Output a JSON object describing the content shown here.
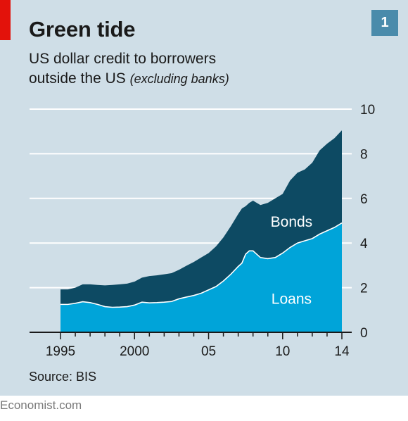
{
  "header": {
    "title": "Green tide",
    "subtitle_line1": "US dollar credit to borrowers",
    "subtitle_line2": "outside the US",
    "subtitle_note": "(excluding banks)",
    "badge": "1"
  },
  "source": "Source: BIS",
  "footer": "Economist.com",
  "colors": {
    "background": "#cfdee7",
    "bonds": "#0d4a63",
    "loans": "#00a4d9",
    "grid": "#ffffff",
    "accent_red": "#e3120b",
    "badge": "#4a8bab"
  },
  "chart_data": {
    "type": "area",
    "stacked": true,
    "title": "Green tide",
    "subtitle": "US dollar credit to borrowers outside the US (excluding banks)",
    "xlabel": "",
    "ylabel": "",
    "xlim": [
      1995,
      2014.1
    ],
    "ylim": [
      0,
      10
    ],
    "yticks": [
      0,
      2,
      4,
      6,
      8,
      10
    ],
    "xticks": [
      {
        "value": 1995,
        "label": "1995"
      },
      {
        "value": 2000,
        "label": "2000"
      },
      {
        "value": 2005,
        "label": "05"
      },
      {
        "value": 2010,
        "label": "10"
      },
      {
        "value": 2014,
        "label": "14"
      }
    ],
    "grid": true,
    "axis_side": "right",
    "x": [
      1995.0,
      1995.5,
      1996.0,
      1996.5,
      1997.0,
      1997.5,
      1998.0,
      1998.5,
      1999.0,
      1999.5,
      2000.0,
      2000.5,
      2001.0,
      2001.5,
      2002.0,
      2002.5,
      2003.0,
      2003.5,
      2004.0,
      2004.5,
      2005.0,
      2005.5,
      2006.0,
      2006.5,
      2007.0,
      2007.25,
      2007.5,
      2007.75,
      2008.0,
      2008.5,
      2009.0,
      2009.5,
      2010.0,
      2010.5,
      2011.0,
      2011.5,
      2012.0,
      2012.5,
      2013.0,
      2013.5,
      2014.0
    ],
    "series": [
      {
        "name": "Loans",
        "values": [
          1.25,
          1.25,
          1.3,
          1.37,
          1.33,
          1.25,
          1.15,
          1.12,
          1.13,
          1.15,
          1.22,
          1.35,
          1.32,
          1.33,
          1.35,
          1.38,
          1.5,
          1.58,
          1.65,
          1.75,
          1.9,
          2.05,
          2.3,
          2.6,
          2.95,
          3.1,
          3.5,
          3.65,
          3.65,
          3.35,
          3.3,
          3.35,
          3.55,
          3.8,
          4.0,
          4.1,
          4.2,
          4.4,
          4.55,
          4.7,
          4.9
        ]
      },
      {
        "name": "Bonds",
        "values": [
          0.67,
          0.67,
          0.7,
          0.78,
          0.82,
          0.87,
          0.95,
          1.0,
          1.02,
          1.03,
          1.05,
          1.1,
          1.2,
          1.22,
          1.25,
          1.27,
          1.3,
          1.4,
          1.5,
          1.6,
          1.65,
          1.8,
          1.95,
          2.15,
          2.35,
          2.45,
          2.15,
          2.15,
          2.25,
          2.35,
          2.5,
          2.65,
          2.65,
          3.0,
          3.15,
          3.2,
          3.4,
          3.75,
          3.9,
          4.0,
          4.15
        ]
      }
    ],
    "annotations": [
      {
        "text": "Bonds",
        "x": 2010.6,
        "y": 4.95
      },
      {
        "text": "Loans",
        "x": 2010.6,
        "y": 1.5
      }
    ]
  }
}
